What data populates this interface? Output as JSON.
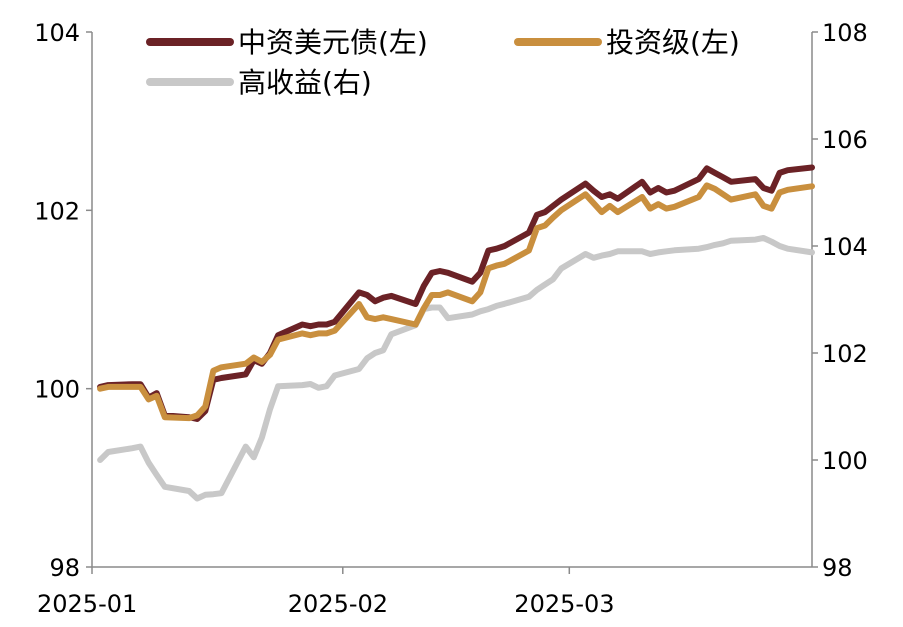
{
  "chart_data": {
    "type": "line",
    "title": "",
    "xlabel": "",
    "ylabel_left": "",
    "ylabel_right": "",
    "ylim_left": [
      98,
      104
    ],
    "ylim_right": [
      98,
      108
    ],
    "yticks_left": [
      "98",
      "100",
      "102",
      "104"
    ],
    "yticks_right": [
      "98",
      "100",
      "102",
      "104",
      "106",
      "108"
    ],
    "xticks": [
      "2025-01",
      "2025-02",
      "2025-03"
    ],
    "grid": false,
    "legend_position": "top",
    "series": [
      {
        "name": "中资美元债(左)",
        "axis": "left",
        "color": "#6b2226",
        "x": [
          "2025-01-02",
          "2025-01-03",
          "2025-01-06",
          "2025-01-07",
          "2025-01-08",
          "2025-01-09",
          "2025-01-10",
          "2025-01-13",
          "2025-01-14",
          "2025-01-15",
          "2025-01-16",
          "2025-01-17",
          "2025-01-20",
          "2025-01-21",
          "2025-01-22",
          "2025-01-23",
          "2025-01-24",
          "2025-01-27",
          "2025-01-28",
          "2025-01-29",
          "2025-01-30",
          "2025-01-31",
          "2025-02-03",
          "2025-02-04",
          "2025-02-05",
          "2025-02-06",
          "2025-02-07",
          "2025-02-10",
          "2025-02-11",
          "2025-02-12",
          "2025-02-13",
          "2025-02-14",
          "2025-02-17",
          "2025-02-18",
          "2025-02-19",
          "2025-02-20",
          "2025-02-21",
          "2025-02-24",
          "2025-02-25",
          "2025-02-26",
          "2025-02-27",
          "2025-02-28",
          "2025-03-03",
          "2025-03-04",
          "2025-03-05",
          "2025-03-06",
          "2025-03-07",
          "2025-03-10",
          "2025-03-11",
          "2025-03-12",
          "2025-03-13",
          "2025-03-14",
          "2025-03-17",
          "2025-03-18",
          "2025-03-19",
          "2025-03-20",
          "2025-03-21",
          "2025-03-24",
          "2025-03-25",
          "2025-03-26",
          "2025-03-27",
          "2025-03-28",
          "2025-03-31"
        ],
        "values": [
          100.02,
          100.04,
          100.05,
          100.05,
          99.9,
          99.95,
          99.7,
          99.68,
          99.66,
          99.75,
          100.1,
          100.12,
          100.16,
          100.32,
          100.28,
          100.4,
          100.6,
          100.72,
          100.7,
          100.72,
          100.72,
          100.75,
          101.08,
          101.05,
          100.98,
          101.02,
          101.04,
          100.95,
          101.15,
          101.3,
          101.32,
          101.3,
          101.2,
          101.3,
          101.55,
          101.57,
          101.6,
          101.75,
          101.95,
          101.98,
          102.05,
          102.12,
          102.3,
          102.22,
          102.15,
          102.18,
          102.13,
          102.32,
          102.2,
          102.25,
          102.2,
          102.22,
          102.35,
          102.47,
          102.42,
          102.37,
          102.32,
          102.35,
          102.25,
          102.22,
          102.42,
          102.45,
          102.48
        ]
      },
      {
        "name": "投资级(左)",
        "axis": "left",
        "color": "#c98f3e",
        "x": [
          "2025-01-02",
          "2025-01-03",
          "2025-01-06",
          "2025-01-07",
          "2025-01-08",
          "2025-01-09",
          "2025-01-10",
          "2025-01-13",
          "2025-01-14",
          "2025-01-15",
          "2025-01-16",
          "2025-01-17",
          "2025-01-20",
          "2025-01-21",
          "2025-01-22",
          "2025-01-23",
          "2025-01-24",
          "2025-01-27",
          "2025-01-28",
          "2025-01-29",
          "2025-01-30",
          "2025-01-31",
          "2025-02-03",
          "2025-02-04",
          "2025-02-05",
          "2025-02-06",
          "2025-02-07",
          "2025-02-10",
          "2025-02-11",
          "2025-02-12",
          "2025-02-13",
          "2025-02-14",
          "2025-02-17",
          "2025-02-18",
          "2025-02-19",
          "2025-02-20",
          "2025-02-21",
          "2025-02-24",
          "2025-02-25",
          "2025-02-26",
          "2025-02-27",
          "2025-02-28",
          "2025-03-03",
          "2025-03-04",
          "2025-03-05",
          "2025-03-06",
          "2025-03-07",
          "2025-03-10",
          "2025-03-11",
          "2025-03-12",
          "2025-03-13",
          "2025-03-14",
          "2025-03-17",
          "2025-03-18",
          "2025-03-19",
          "2025-03-20",
          "2025-03-21",
          "2025-03-24",
          "2025-03-25",
          "2025-03-26",
          "2025-03-27",
          "2025-03-28",
          "2025-03-31"
        ],
        "values": [
          100.0,
          100.02,
          100.02,
          100.02,
          99.88,
          99.92,
          99.68,
          99.67,
          99.7,
          99.8,
          100.2,
          100.24,
          100.28,
          100.35,
          100.3,
          100.38,
          100.55,
          100.62,
          100.6,
          100.62,
          100.62,
          100.65,
          100.95,
          100.8,
          100.78,
          100.8,
          100.78,
          100.72,
          100.9,
          101.05,
          101.05,
          101.08,
          100.98,
          101.08,
          101.35,
          101.38,
          101.4,
          101.55,
          101.8,
          101.83,
          101.92,
          102.0,
          102.18,
          102.08,
          101.98,
          102.05,
          101.98,
          102.15,
          102.02,
          102.07,
          102.02,
          102.04,
          102.15,
          102.28,
          102.24,
          102.18,
          102.12,
          102.18,
          102.05,
          102.02,
          102.2,
          102.23,
          102.27
        ]
      },
      {
        "name": "高收益(右)",
        "axis": "right",
        "color": "#c8c8c8",
        "x": [
          "2025-01-02",
          "2025-01-03",
          "2025-01-06",
          "2025-01-07",
          "2025-01-08",
          "2025-01-09",
          "2025-01-10",
          "2025-01-13",
          "2025-01-14",
          "2025-01-15",
          "2025-01-16",
          "2025-01-17",
          "2025-01-20",
          "2025-01-21",
          "2025-01-22",
          "2025-01-23",
          "2025-01-24",
          "2025-01-27",
          "2025-01-28",
          "2025-01-29",
          "2025-01-30",
          "2025-01-31",
          "2025-02-03",
          "2025-02-04",
          "2025-02-05",
          "2025-02-06",
          "2025-02-07",
          "2025-02-10",
          "2025-02-11",
          "2025-02-12",
          "2025-02-13",
          "2025-02-14",
          "2025-02-17",
          "2025-02-18",
          "2025-02-19",
          "2025-02-20",
          "2025-02-21",
          "2025-02-24",
          "2025-02-25",
          "2025-02-26",
          "2025-02-27",
          "2025-02-28",
          "2025-03-03",
          "2025-03-04",
          "2025-03-05",
          "2025-03-06",
          "2025-03-07",
          "2025-03-10",
          "2025-03-11",
          "2025-03-12",
          "2025-03-13",
          "2025-03-14",
          "2025-03-17",
          "2025-03-18",
          "2025-03-19",
          "2025-03-20",
          "2025-03-21",
          "2025-03-24",
          "2025-03-25",
          "2025-03-26",
          "2025-03-27",
          "2025-03-28",
          "2025-03-31"
        ],
        "values": [
          100.0,
          100.15,
          100.22,
          100.25,
          99.95,
          99.72,
          99.5,
          99.42,
          99.28,
          99.35,
          99.36,
          99.38,
          100.25,
          100.05,
          100.42,
          100.95,
          101.38,
          101.4,
          101.42,
          101.35,
          101.38,
          101.58,
          101.7,
          101.9,
          102.0,
          102.05,
          102.35,
          102.52,
          102.82,
          102.85,
          102.85,
          102.65,
          102.72,
          102.78,
          102.82,
          102.88,
          102.92,
          103.05,
          103.18,
          103.28,
          103.38,
          103.58,
          103.85,
          103.78,
          103.82,
          103.85,
          103.9,
          103.9,
          103.85,
          103.88,
          103.9,
          103.92,
          103.95,
          103.98,
          104.02,
          104.05,
          104.1,
          104.12,
          104.15,
          104.08,
          104.0,
          103.95,
          103.88
        ]
      }
    ]
  }
}
